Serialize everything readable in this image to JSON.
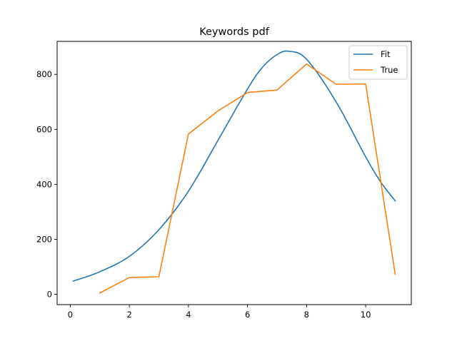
{
  "chart_data": {
    "type": "line",
    "title": "Keywords pdf",
    "xlabel": "",
    "ylabel": "",
    "xlim": [
      -0.445,
      11.545
    ],
    "ylim": [
      -37.5,
      920
    ],
    "xticks": [
      0,
      2,
      4,
      6,
      8,
      10
    ],
    "yticks": [
      0,
      200,
      400,
      600,
      800
    ],
    "grid": false,
    "legend_position": "top-right",
    "series": [
      {
        "name": "Fit",
        "color": "#1f77b4",
        "x": [
          0.1,
          1.0,
          2.0,
          3.0,
          4.0,
          5.0,
          6.0,
          6.5,
          7.0,
          7.4,
          8.0,
          9.0,
          10.0,
          10.5,
          11.0
        ],
        "y": [
          48,
          82,
          138,
          235,
          375,
          560,
          747,
          825,
          872,
          884,
          855,
          700,
          500,
          410,
          340
        ]
      },
      {
        "name": "True",
        "color": "#ff7f0e",
        "x": [
          1,
          2,
          3,
          4,
          5,
          6,
          7,
          8,
          9,
          10,
          11
        ],
        "y": [
          5,
          61,
          64,
          583,
          667,
          734,
          743,
          838,
          764,
          765,
          73
        ]
      }
    ]
  }
}
